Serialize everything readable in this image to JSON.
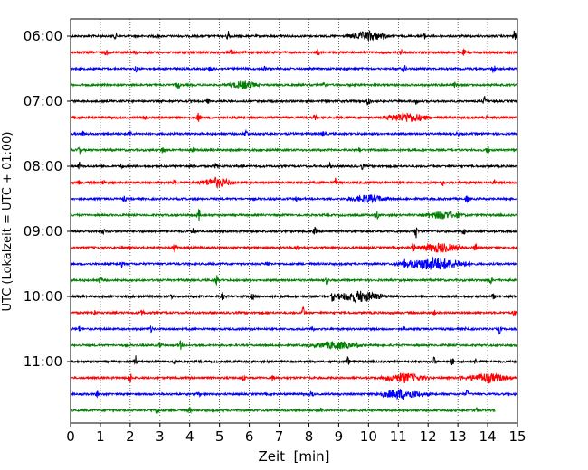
{
  "chart_data": {
    "type": "line",
    "title": "",
    "xlabel": "Zeit  [min]",
    "ylabel": "UTC (Lokalzeit = UTC + 01:00)",
    "xlim": [
      0,
      15
    ],
    "x_ticks": [
      0,
      1,
      2,
      3,
      4,
      5,
      6,
      7,
      8,
      9,
      10,
      11,
      12,
      13,
      14,
      15
    ],
    "y_tick_labels": [
      "06:00",
      "07:00",
      "08:00",
      "09:00",
      "10:00",
      "11:00"
    ],
    "row_interval_min": 15,
    "rows_per_tick": 4,
    "grid": "vertical dotted at each minute",
    "color_cycle": [
      "#000000",
      "#ff0000",
      "#0000ff",
      "#008000"
    ],
    "traces": [
      {
        "start": "06:00",
        "color": "#000000",
        "end_min": 15,
        "events": [
          {
            "t": 1.5,
            "a": 3
          },
          {
            "t": 2.9,
            "a": 3
          },
          {
            "t": 5.3,
            "a": 7
          },
          {
            "t": 7.1,
            "a": 3
          },
          {
            "t": 10,
            "a": 5,
            "w": 0.8
          },
          {
            "t": 11.9,
            "a": 3
          },
          {
            "t": 14.9,
            "a": 6
          }
        ]
      },
      {
        "start": "06:15",
        "color": "#ff0000",
        "end_min": 15,
        "events": [
          {
            "t": 1.2,
            "a": 3
          },
          {
            "t": 2.2,
            "a": 3
          },
          {
            "t": 5.4,
            "a": 3
          },
          {
            "t": 8.3,
            "a": 4
          },
          {
            "t": 11.1,
            "a": 3
          },
          {
            "t": 13.2,
            "a": 3
          }
        ]
      },
      {
        "start": "06:30",
        "color": "#0000ff",
        "end_min": 15,
        "events": [
          {
            "t": 2.2,
            "a": 3
          },
          {
            "t": 4.7,
            "a": 3
          },
          {
            "t": 6.5,
            "a": 3
          },
          {
            "t": 11.2,
            "a": 4
          },
          {
            "t": 14.2,
            "a": 5
          }
        ]
      },
      {
        "start": "06:45",
        "color": "#008000",
        "end_min": 15,
        "events": [
          {
            "t": 3.6,
            "a": 5
          },
          {
            "t": 5.8,
            "a": 4,
            "w": 0.6
          },
          {
            "t": 8.5,
            "a": 7
          },
          {
            "t": 12.9,
            "a": 3
          }
        ]
      },
      {
        "start": "07:00",
        "color": "#000000",
        "end_min": 15,
        "events": [
          {
            "t": 4.6,
            "a": 3
          },
          {
            "t": 10.0,
            "a": 6
          },
          {
            "t": 11.6,
            "a": 3
          },
          {
            "t": 13.9,
            "a": 5
          }
        ]
      },
      {
        "start": "07:15",
        "color": "#ff0000",
        "end_min": 15,
        "events": [
          {
            "t": 2.5,
            "a": 3
          },
          {
            "t": 4.3,
            "a": 5
          },
          {
            "t": 8.2,
            "a": 3
          },
          {
            "t": 11.3,
            "a": 5,
            "w": 0.9
          },
          {
            "t": 14.0,
            "a": 3
          }
        ]
      },
      {
        "start": "07:30",
        "color": "#0000ff",
        "end_min": 15,
        "events": [
          {
            "t": 0.4,
            "a": 3
          },
          {
            "t": 2.0,
            "a": 3
          },
          {
            "t": 5.9,
            "a": 4
          },
          {
            "t": 8.5,
            "a": 3
          },
          {
            "t": 13.0,
            "a": 3
          }
        ]
      },
      {
        "start": "07:45",
        "color": "#008000",
        "end_min": 15,
        "events": [
          {
            "t": 0.3,
            "a": 4
          },
          {
            "t": 3.1,
            "a": 5
          },
          {
            "t": 4.1,
            "a": 3
          },
          {
            "t": 9.7,
            "a": 3
          },
          {
            "t": 14.0,
            "a": 5
          }
        ]
      },
      {
        "start": "08:00",
        "color": "#000000",
        "end_min": 15,
        "events": [
          {
            "t": 0.3,
            "a": 4
          },
          {
            "t": 1.7,
            "a": 4
          },
          {
            "t": 4.9,
            "a": 5
          },
          {
            "t": 8.7,
            "a": 3
          },
          {
            "t": 9.8,
            "a": 3
          }
        ]
      },
      {
        "start": "08:15",
        "color": "#ff0000",
        "end_min": 15,
        "events": [
          {
            "t": 0.3,
            "a": 3
          },
          {
            "t": 1.1,
            "a": 3
          },
          {
            "t": 3.5,
            "a": 3
          },
          {
            "t": 4.9,
            "a": 5,
            "w": 0.7
          },
          {
            "t": 8.9,
            "a": 5
          },
          {
            "t": 12.5,
            "a": 3
          },
          {
            "t": 14.2,
            "a": 3
          }
        ]
      },
      {
        "start": "08:30",
        "color": "#0000ff",
        "end_min": 15,
        "events": [
          {
            "t": 1.8,
            "a": 3
          },
          {
            "t": 7.6,
            "a": 3
          },
          {
            "t": 10.0,
            "a": 4,
            "w": 0.8
          },
          {
            "t": 13.3,
            "a": 5
          }
        ]
      },
      {
        "start": "08:45",
        "color": "#008000",
        "end_min": 15,
        "events": [
          {
            "t": 4.3,
            "a": 8
          },
          {
            "t": 10.3,
            "a": 5
          },
          {
            "t": 12.5,
            "a": 4,
            "w": 0.8
          },
          {
            "t": 13.0,
            "a": 3
          }
        ]
      },
      {
        "start": "09:00",
        "color": "#000000",
        "end_min": 15,
        "events": [
          {
            "t": 1.1,
            "a": 3
          },
          {
            "t": 4.1,
            "a": 4
          },
          {
            "t": 8.2,
            "a": 4
          },
          {
            "t": 11.6,
            "a": 7
          },
          {
            "t": 13.2,
            "a": 3
          }
        ]
      },
      {
        "start": "09:15",
        "color": "#ff0000",
        "end_min": 15,
        "events": [
          {
            "t": 3.5,
            "a": 5
          },
          {
            "t": 7.6,
            "a": 3
          },
          {
            "t": 11.5,
            "a": 6
          },
          {
            "t": 12.4,
            "a": 5,
            "w": 0.9
          },
          {
            "t": 13.6,
            "a": 6
          }
        ]
      },
      {
        "start": "09:30",
        "color": "#0000ff",
        "end_min": 15,
        "events": [
          {
            "t": 1.7,
            "a": 3
          },
          {
            "t": 6.6,
            "a": 3
          },
          {
            "t": 11.2,
            "a": 6
          },
          {
            "t": 12.2,
            "a": 7,
            "w": 1.4
          }
        ]
      },
      {
        "start": "09:45",
        "color": "#008000",
        "end_min": 15,
        "events": [
          {
            "t": 1.0,
            "a": 4
          },
          {
            "t": 4.9,
            "a": 6
          },
          {
            "t": 8.6,
            "a": 5
          },
          {
            "t": 14.1,
            "a": 4
          }
        ]
      },
      {
        "start": "10:00",
        "color": "#000000",
        "end_min": 15,
        "events": [
          {
            "t": 3.4,
            "a": 3
          },
          {
            "t": 5.1,
            "a": 4
          },
          {
            "t": 6.1,
            "a": 4
          },
          {
            "t": 8.8,
            "a": 6
          },
          {
            "t": 9.7,
            "a": 6,
            "w": 1.0
          },
          {
            "t": 14.2,
            "a": 3
          }
        ]
      },
      {
        "start": "10:15",
        "color": "#ff0000",
        "end_min": 15,
        "events": [
          {
            "t": 0.8,
            "a": 3
          },
          {
            "t": 2.4,
            "a": 3
          },
          {
            "t": 7.8,
            "a": 7
          },
          {
            "t": 12.2,
            "a": 3
          },
          {
            "t": 14.9,
            "a": 5
          }
        ]
      },
      {
        "start": "10:30",
        "color": "#0000ff",
        "end_min": 15,
        "events": [
          {
            "t": 0.3,
            "a": 3
          },
          {
            "t": 2.7,
            "a": 3
          },
          {
            "t": 8.1,
            "a": 4
          },
          {
            "t": 11.2,
            "a": 3
          },
          {
            "t": 13.3,
            "a": 3
          },
          {
            "t": 14.4,
            "a": 5
          }
        ]
      },
      {
        "start": "10:45",
        "color": "#008000",
        "end_min": 15,
        "events": [
          {
            "t": 3.0,
            "a": 3
          },
          {
            "t": 3.7,
            "a": 5
          },
          {
            "t": 8.9,
            "a": 4,
            "w": 1.0
          },
          {
            "t": 9.6,
            "a": 3
          }
        ]
      },
      {
        "start": "11:00",
        "color": "#000000",
        "end_min": 15,
        "events": [
          {
            "t": 2.2,
            "a": 7
          },
          {
            "t": 3.5,
            "a": 3
          },
          {
            "t": 9.3,
            "a": 5
          },
          {
            "t": 12.2,
            "a": 5
          },
          {
            "t": 12.8,
            "a": 5
          },
          {
            "t": 13.6,
            "a": 3
          }
        ]
      },
      {
        "start": "11:15",
        "color": "#ff0000",
        "end_min": 15,
        "events": [
          {
            "t": 2.0,
            "a": 6
          },
          {
            "t": 5.8,
            "a": 4
          },
          {
            "t": 6.8,
            "a": 3
          },
          {
            "t": 11.2,
            "a": 5,
            "w": 0.9
          },
          {
            "t": 13.1,
            "a": 3
          },
          {
            "t": 14.0,
            "a": 5,
            "w": 0.9
          }
        ]
      },
      {
        "start": "11:30",
        "color": "#0000ff",
        "end_min": 15,
        "events": [
          {
            "t": 0.9,
            "a": 3
          },
          {
            "t": 4.3,
            "a": 3
          },
          {
            "t": 8.1,
            "a": 3
          },
          {
            "t": 11.1,
            "a": 5,
            "w": 1.0
          },
          {
            "t": 13.3,
            "a": 4
          }
        ]
      },
      {
        "start": "11:45",
        "color": "#008000",
        "end_min": 14.25,
        "events": [
          {
            "t": 2.9,
            "a": 4
          },
          {
            "t": 4.0,
            "a": 3
          },
          {
            "t": 8.4,
            "a": 3
          },
          {
            "t": 13.6,
            "a": 5
          }
        ]
      }
    ]
  }
}
